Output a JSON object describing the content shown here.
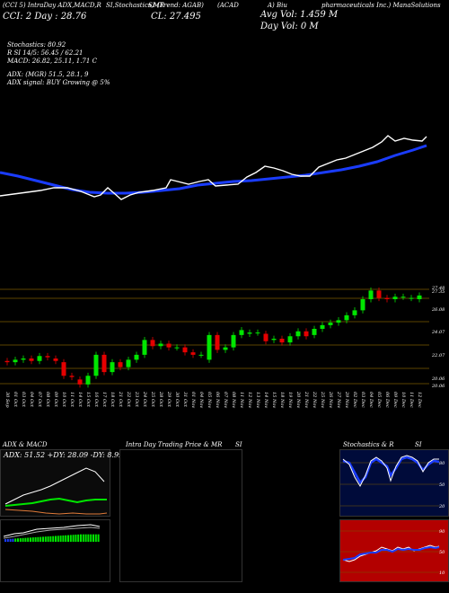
{
  "header": {
    "line1_left": "(CCI 5) IntraDay ADX,MACD,R",
    "line1_mid": "SI,Stochastics,MR",
    "line1_mid2": "SI (Trend: AGAB)",
    "line1_ticker": "(ACAD",
    "line1_right": "A) Biu",
    "line1_company": "pharmaceuticals Inc.) ManaSolutions",
    "cci": "CCI: 2 Day : 28.76",
    "cl": "CL: 27.495",
    "avgvol": "Avg Vol: 1.459 M",
    "dayvol": "Day Vol: 0   M",
    "stoch": "Stochastics: 80.92",
    "rsi": "R       SI 14/5: 56.45 / 62.21",
    "macd": "MACD: 26.82, 25.11, 1.71 C",
    "adx": "ADX:                        (MGR) 51.5,  28.1,  9",
    "adx_signal": "ADX   signal:                                 BUY Growing @ 5%"
  },
  "price_axis": [
    "27.48",
    "27.35",
    "26.08",
    "24.07",
    "22.07",
    "20.06",
    "20.06"
  ],
  "dates": [
    "30 Sep",
    "01 Oct",
    "03 Oct",
    "04 Oct",
    "07 Oct",
    "08 Oct",
    "09 Oct",
    "10 Oct",
    "11 Oct",
    "14 Oct",
    "15 Oct",
    "16 Oct",
    "17 Oct",
    "18 Oct",
    "21 Oct",
    "22 Oct",
    "23 Oct",
    "24 Oct",
    "25 Oct",
    "28 Oct",
    "29 Oct",
    "30 Oct",
    "31 Oct",
    "01 Nov",
    "04 Nov",
    "05 Nov",
    "06 Nov",
    "07 Nov",
    "08 Nov",
    "11 Nov",
    "12 Nov",
    "13 Nov",
    "14 Nov",
    "15 Nov",
    "18 Nov",
    "19 Nov",
    "20 Nov",
    "21 Nov",
    "22 Nov",
    "25 Nov",
    "26 Nov",
    "27 Nov",
    "29 Nov",
    "02 Dec",
    "03 Dec",
    "04 Dec",
    "05 Dec",
    "06 Dec",
    "09 Dec",
    "10 Dec",
    "11 Dec",
    "12 Dec"
  ],
  "candles": [
    {
      "o": 22.2,
      "c": 22.1
    },
    {
      "o": 22.1,
      "c": 22.3
    },
    {
      "o": 22.3,
      "c": 22.4
    },
    {
      "o": 22.4,
      "c": 22.2
    },
    {
      "o": 22.2,
      "c": 22.6
    },
    {
      "o": 22.6,
      "c": 22.5
    },
    {
      "o": 22.4,
      "c": 22.2
    },
    {
      "o": 22.1,
      "c": 21.0
    },
    {
      "o": 21.0,
      "c": 20.9
    },
    {
      "o": 20.7,
      "c": 20.3
    },
    {
      "o": 20.3,
      "c": 21.0
    },
    {
      "o": 21.0,
      "c": 22.7
    },
    {
      "o": 22.7,
      "c": 21.3
    },
    {
      "o": 21.3,
      "c": 22.1
    },
    {
      "o": 22.1,
      "c": 21.7
    },
    {
      "o": 21.7,
      "c": 22.3
    },
    {
      "o": 22.3,
      "c": 22.7
    },
    {
      "o": 22.7,
      "c": 23.9
    },
    {
      "o": 23.9,
      "c": 23.4
    },
    {
      "o": 23.4,
      "c": 23.6
    },
    {
      "o": 23.6,
      "c": 23.3
    },
    {
      "o": 23.3,
      "c": 23.3
    },
    {
      "o": 23.3,
      "c": 22.9
    },
    {
      "o": 22.9,
      "c": 22.7
    },
    {
      "o": 22.7,
      "c": 22.7
    },
    {
      "o": 22.3,
      "c": 24.3
    },
    {
      "o": 24.3,
      "c": 23.1
    },
    {
      "o": 23.1,
      "c": 23.3
    },
    {
      "o": 23.3,
      "c": 24.3
    },
    {
      "o": 24.3,
      "c": 24.7
    },
    {
      "o": 24.4,
      "c": 24.5
    },
    {
      "o": 24.5,
      "c": 24.5
    },
    {
      "o": 24.4,
      "c": 23.8
    },
    {
      "o": 23.9,
      "c": 24.0
    },
    {
      "o": 24.0,
      "c": 23.7
    },
    {
      "o": 23.7,
      "c": 24.2
    },
    {
      "o": 24.2,
      "c": 24.6
    },
    {
      "o": 24.6,
      "c": 24.2
    },
    {
      "o": 24.3,
      "c": 24.8
    },
    {
      "o": 24.8,
      "c": 25.1
    },
    {
      "o": 25.1,
      "c": 25.3
    },
    {
      "o": 25.3,
      "c": 25.5
    },
    {
      "o": 25.5,
      "c": 25.9
    },
    {
      "o": 25.9,
      "c": 26.3
    },
    {
      "o": 26.3,
      "c": 27.2
    },
    {
      "o": 27.2,
      "c": 27.9
    },
    {
      "o": 27.9,
      "c": 27.3
    },
    {
      "o": 27.3,
      "c": 27.2
    },
    {
      "o": 27.2,
      "c": 27.4
    },
    {
      "o": 27.4,
      "c": 27.4
    },
    {
      "o": 27.3,
      "c": 27.3
    },
    {
      "o": 27.2,
      "c": 27.5
    }
  ],
  "bottom": {
    "adx_title": "ADX  & MACD",
    "intra_title": "Intra Day Trading Price  & MR",
    "intra_title2": "SI",
    "stoch_title": "Stochastics & R",
    "stoch_title2": "SI",
    "adx_values": "ADX: 51.52  +DY: 28.09  -DY: 8.99",
    "stoch_labels": [
      "80",
      "50",
      "20"
    ],
    "rsi_labels": [
      "90",
      "50",
      "10"
    ]
  },
  "colors": {
    "up": "#00e600",
    "down": "#e60000",
    "blue": "#1a3cff",
    "line": "#ffffff",
    "grid": "#7a5a00",
    "red_bg": "#b30000"
  }
}
